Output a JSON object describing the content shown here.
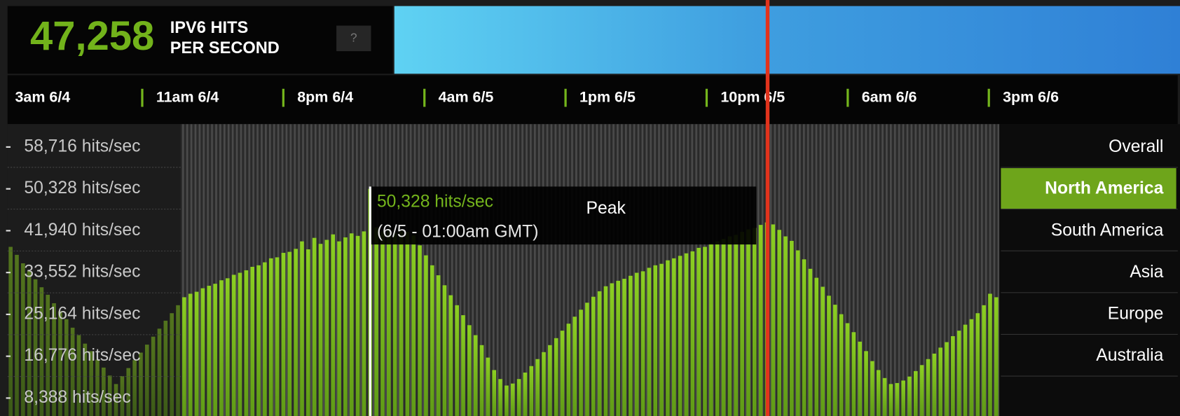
{
  "header": {
    "hits": "47,258",
    "label_line1": "IPV6 HITS",
    "label_line2": "PER SECOND",
    "help": "?"
  },
  "chart_data": {
    "type": "bar",
    "color": "#74b51c",
    "time_labels": [
      "3am 6/4",
      "11am 6/4",
      "8pm 6/4",
      "4am 6/5",
      "1pm 6/5",
      "10pm 6/5",
      "6am 6/6",
      "3pm 6/6"
    ],
    "values": [
      38700,
      37100,
      35400,
      33900,
      32200,
      30600,
      29100,
      27400,
      25800,
      24200,
      22500,
      21000,
      19300,
      17800,
      16100,
      14500,
      12900,
      11200,
      12800,
      14400,
      16000,
      17500,
      19100,
      20700,
      22300,
      23900,
      25400,
      27000,
      28600,
      29300,
      29700,
      30400,
      30900,
      31300,
      32000,
      32400,
      33100,
      33500,
      34000,
      34700,
      35000,
      35600,
      36400,
      36600,
      37500,
      37700,
      38300,
      39800,
      38200,
      40500,
      39300,
      40100,
      41200,
      39800,
      40600,
      41400,
      40900,
      41800,
      50328,
      42600,
      41800,
      42300,
      41500,
      42100,
      41700,
      41000,
      39000,
      37000,
      35000,
      33000,
      31000,
      29000,
      27000,
      25000,
      23000,
      21000,
      19000,
      16500,
      14000,
      12200,
      10900,
      11300,
      12200,
      13500,
      14800,
      16200,
      17600,
      19000,
      20400,
      21900,
      23300,
      24700,
      26100,
      27500,
      28700,
      29800,
      30800,
      31400,
      31900,
      32300,
      32900,
      33500,
      33800,
      34500,
      35000,
      35300,
      36000,
      36400,
      36900,
      37400,
      37800,
      38500,
      38700,
      39400,
      39800,
      40300,
      40800,
      41100,
      41700,
      42200,
      42500,
      43100,
      43600,
      43200,
      42100,
      40800,
      39900,
      38000,
      36200,
      34300,
      32500,
      30700,
      28900,
      27100,
      25200,
      23400,
      21600,
      19700,
      17800,
      15800,
      14000,
      12400,
      11200,
      11400,
      11900,
      12700,
      13800,
      15000,
      16200,
      17300,
      18500,
      19600,
      20800,
      21900,
      23100,
      24200,
      25400,
      27000,
      29300,
      28600
    ],
    "ylim": [
      4800,
      63300
    ],
    "yticks": [
      {
        "value": 58716,
        "label": "58,716 hits/sec"
      },
      {
        "value": 50328,
        "label": "50,328 hits/sec"
      },
      {
        "value": 41940,
        "label": "41,940 hits/sec"
      },
      {
        "value": 33552,
        "label": "33,552 hits/sec"
      },
      {
        "value": 25164,
        "label": "25,164 hits/sec"
      },
      {
        "value": 16776,
        "label": "16,776 hits/sec"
      },
      {
        "value": 8388,
        "label": "8,388 hits/sec"
      }
    ],
    "tooltip": {
      "peak_index": 58,
      "value_label": "50,328 hits/sec",
      "time": "(6/5 - 01:00am GMT)",
      "title": "Peak"
    }
  },
  "regions": {
    "items": [
      "Overall",
      "North America",
      "South America",
      "Asia",
      "Europe",
      "Australia"
    ],
    "selected": 1
  }
}
